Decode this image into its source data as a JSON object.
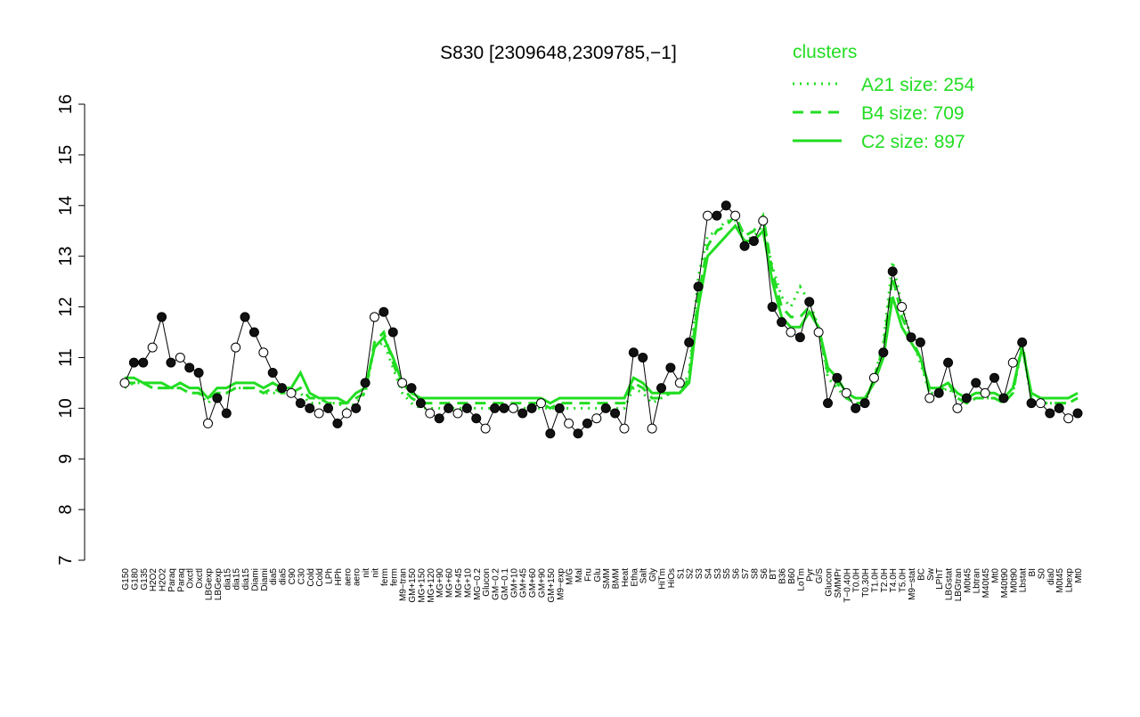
{
  "chart_data": {
    "type": "line",
    "title": "S830 [2309648,2309785,−1]",
    "legend_title": "clusters",
    "legend_position": "top-right",
    "categories": [
      "G150",
      "G180",
      "G135",
      "H2O2",
      "H2O2",
      "Paraq",
      "Paraq",
      "Oxctl",
      "Oxctl",
      "LBGexp",
      "LBGexp",
      "dia15",
      "dia15",
      "dia15",
      "Diami",
      "Diami",
      "dia5",
      "dia5",
      "C90",
      "C30",
      "Cold",
      "Cold",
      "LPh",
      "HPh",
      "aero",
      "aero",
      "nit",
      "nit",
      "ferm",
      "ferm",
      "M9−tran",
      "GM+150",
      "MG+150",
      "MG+120",
      "MG+90",
      "MG+60",
      "MG+45",
      "MG+10",
      "MG−0.2",
      "Glucon",
      "GM−0.2",
      "GM−0.1",
      "GM+10",
      "GM+45",
      "GM+60",
      "GM+90",
      "GM+150",
      "M9−exp",
      "M/G",
      "Mal",
      "Fru",
      "Glu",
      "SMM",
      "BMM",
      "Heat",
      "Etha",
      "Salt",
      "Gly",
      "HiTm",
      "HiOs",
      "S1",
      "S2",
      "S3",
      "S4",
      "S3",
      "S5",
      "S6",
      "S7",
      "S8",
      "S6",
      "BT",
      "B36",
      "B60",
      "LoTm",
      "Pyr",
      "G/S",
      "Glucon",
      "SMMPr",
      "T−0.40H",
      "T0.0H",
      "T0.30H",
      "T1.0H",
      "T2.0H",
      "T4.0H",
      "T5.0H",
      "M9−stat",
      "BC",
      "Sw",
      "LPhT",
      "LBGstat",
      "LBGtran",
      "M0t45",
      "Lbtran",
      "M40t45",
      "Mt0",
      "M40t90",
      "M0t90",
      "Lbstat",
      "BI",
      "S0",
      "dia0",
      "M0t45",
      "Lbexp",
      "Mt0"
    ],
    "values": [
      10.5,
      10.9,
      10.9,
      11.2,
      11.8,
      10.9,
      11.0,
      10.8,
      10.7,
      9.7,
      10.2,
      9.9,
      11.2,
      11.8,
      11.5,
      11.1,
      10.7,
      10.4,
      10.3,
      10.1,
      10.0,
      9.9,
      10.0,
      9.7,
      9.9,
      10.0,
      10.5,
      11.8,
      11.9,
      11.5,
      10.5,
      10.4,
      10.1,
      9.9,
      9.8,
      10.0,
      9.9,
      10.0,
      9.8,
      9.6,
      10.0,
      10.0,
      10.0,
      9.9,
      10.0,
      10.1,
      9.5,
      10.0,
      9.7,
      9.5,
      9.7,
      9.8,
      10.0,
      9.9,
      9.6,
      11.1,
      11.0,
      9.6,
      10.4,
      10.8,
      10.5,
      11.3,
      12.4,
      13.8,
      13.8,
      14.0,
      13.8,
      13.2,
      13.3,
      13.7,
      12.0,
      11.7,
      11.5,
      11.4,
      12.1,
      11.5,
      10.1,
      10.6,
      10.3,
      10.0,
      10.1,
      10.6,
      11.1,
      12.7,
      12.0,
      11.4,
      11.3,
      10.2,
      10.3,
      10.9,
      10.0,
      10.2,
      10.5,
      10.3,
      10.6,
      10.2,
      10.9,
      11.3,
      10.1,
      10.1,
      9.9,
      10.0,
      9.8,
      9.9
    ],
    "series": [
      {
        "name": "A21 size: 254",
        "color": "#22dd22",
        "dash": "dotted",
        "values": [
          10.4,
          10.5,
          10.5,
          10.4,
          10.4,
          10.4,
          10.4,
          10.3,
          10.3,
          10.1,
          10.3,
          10.3,
          10.4,
          10.4,
          10.4,
          10.3,
          10.3,
          10.3,
          10.3,
          10.3,
          10.1,
          10.1,
          10.1,
          10.1,
          10.0,
          10.1,
          10.3,
          11.2,
          11.3,
          10.8,
          10.3,
          10.1,
          10.0,
          10.0,
          10.0,
          10.0,
          10.0,
          10.0,
          10.0,
          10.0,
          10.0,
          10.0,
          10.0,
          10.0,
          10.0,
          10.0,
          10.0,
          10.0,
          10.0,
          10.0,
          10.0,
          10.0,
          10.0,
          10.0,
          10.0,
          10.4,
          10.3,
          10.1,
          10.2,
          10.3,
          10.3,
          10.7,
          12.6,
          13.4,
          13.5,
          13.7,
          13.7,
          13.3,
          13.4,
          13.6,
          12.8,
          12.2,
          12.0,
          12.4,
          12.1,
          11.6,
          10.6,
          10.4,
          10.2,
          10.1,
          10.1,
          10.6,
          11.3,
          12.9,
          12.0,
          11.4,
          10.9,
          10.3,
          10.3,
          10.4,
          10.2,
          10.1,
          10.2,
          10.2,
          10.2,
          10.1,
          10.3,
          11.2,
          10.2,
          10.1,
          10.1,
          10.1,
          10.1,
          10.2
        ]
      },
      {
        "name": "B4 size: 709",
        "color": "#22dd22",
        "dash": "dashed",
        "values": [
          10.5,
          10.5,
          10.5,
          10.4,
          10.4,
          10.4,
          10.4,
          10.3,
          10.3,
          10.2,
          10.3,
          10.3,
          10.4,
          10.4,
          10.4,
          10.3,
          10.4,
          10.3,
          10.3,
          10.4,
          10.2,
          10.2,
          10.1,
          10.1,
          10.1,
          10.2,
          10.3,
          11.3,
          11.5,
          10.9,
          10.4,
          10.2,
          10.1,
          10.1,
          10.1,
          10.1,
          10.1,
          10.1,
          10.1,
          10.1,
          10.1,
          10.1,
          10.1,
          10.1,
          10.1,
          10.1,
          10.0,
          10.1,
          10.1,
          10.1,
          10.1,
          10.1,
          10.1,
          10.1,
          10.1,
          10.5,
          10.4,
          10.2,
          10.2,
          10.3,
          10.3,
          10.6,
          12.2,
          13.2,
          13.5,
          13.6,
          13.8,
          13.4,
          13.5,
          13.8,
          12.7,
          12.0,
          11.8,
          11.8,
          12.0,
          11.6,
          10.7,
          10.5,
          10.2,
          10.1,
          10.1,
          10.6,
          11.2,
          12.6,
          11.8,
          11.4,
          11.0,
          10.3,
          10.3,
          10.5,
          10.2,
          10.1,
          10.2,
          10.2,
          10.2,
          10.1,
          10.3,
          11.3,
          10.2,
          10.1,
          10.1,
          10.1,
          10.1,
          10.2
        ]
      },
      {
        "name": "C2 size: 897",
        "color": "#22dd22",
        "dash": "solid",
        "values": [
          10.6,
          10.6,
          10.5,
          10.5,
          10.5,
          10.4,
          10.5,
          10.4,
          10.4,
          10.2,
          10.4,
          10.4,
          10.5,
          10.5,
          10.5,
          10.4,
          10.5,
          10.4,
          10.4,
          10.7,
          10.3,
          10.2,
          10.2,
          10.2,
          10.1,
          10.3,
          10.4,
          11.2,
          11.4,
          11.0,
          10.5,
          10.3,
          10.2,
          10.2,
          10.2,
          10.2,
          10.2,
          10.2,
          10.2,
          10.2,
          10.2,
          10.2,
          10.2,
          10.2,
          10.2,
          10.2,
          10.1,
          10.2,
          10.2,
          10.2,
          10.2,
          10.2,
          10.2,
          10.2,
          10.2,
          10.6,
          10.5,
          10.3,
          10.3,
          10.3,
          10.3,
          10.5,
          12.0,
          13.0,
          13.2,
          13.4,
          13.6,
          13.3,
          13.3,
          13.5,
          12.5,
          11.8,
          11.6,
          11.6,
          11.9,
          11.6,
          10.8,
          10.6,
          10.3,
          10.2,
          10.2,
          10.5,
          11.0,
          12.2,
          11.6,
          11.3,
          11.0,
          10.4,
          10.4,
          10.5,
          10.3,
          10.2,
          10.3,
          10.3,
          10.3,
          10.2,
          10.4,
          11.2,
          10.3,
          10.2,
          10.2,
          10.2,
          10.2,
          10.3
        ]
      }
    ],
    "ylim": [
      7,
      16
    ],
    "yticks": [
      7,
      8,
      9,
      10,
      11,
      12,
      13,
      14,
      15,
      16
    ]
  }
}
